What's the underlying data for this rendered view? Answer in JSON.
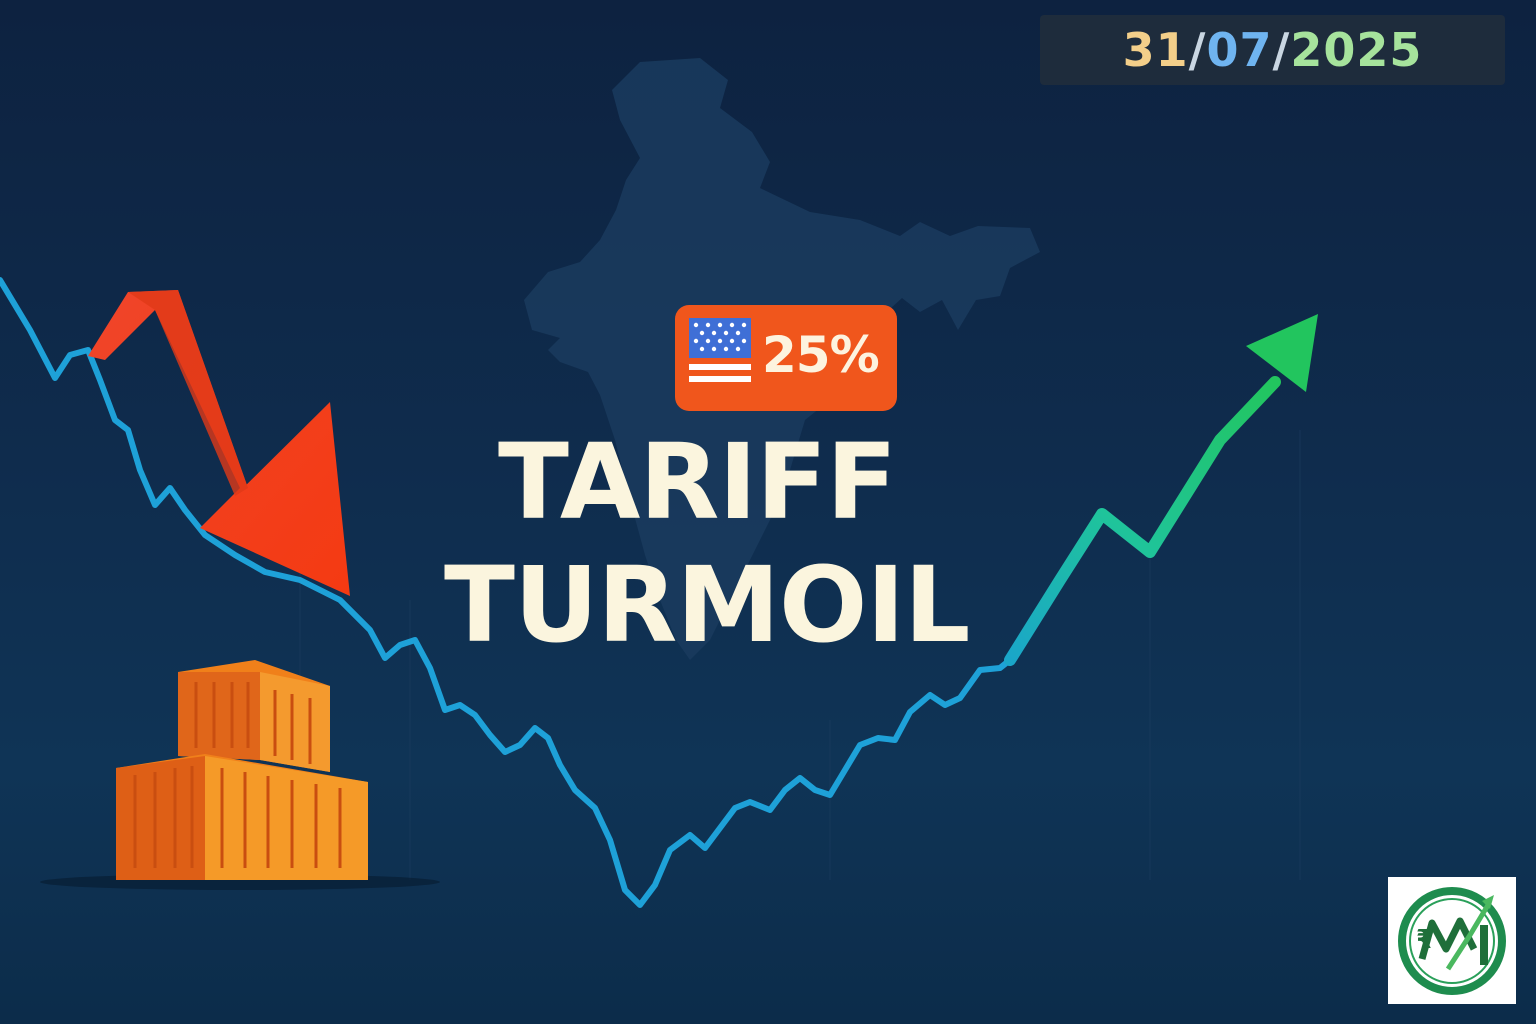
{
  "date": {
    "day": "31",
    "sep1": "/",
    "month": "07",
    "sep2": "/",
    "year": "2025"
  },
  "badge": {
    "flag": "us-flag-icon",
    "text": "25%"
  },
  "headline": {
    "line1": "TARIFF",
    "line2": "TURMOIL"
  },
  "icons": [
    "india-map-silhouette",
    "down-arrow-icon",
    "up-arrow-icon",
    "shipping-containers-icon",
    "logo-icon"
  ],
  "colors": {
    "background": "#0f2c4d",
    "down_arrow": "#f23c1c",
    "up_arrow": "#1fc46c",
    "line": "#1ea1d8",
    "container": "#f0801a",
    "badge": "#f0561c",
    "headline": "#fbf5de"
  },
  "logo": {
    "symbol": "₹"
  }
}
